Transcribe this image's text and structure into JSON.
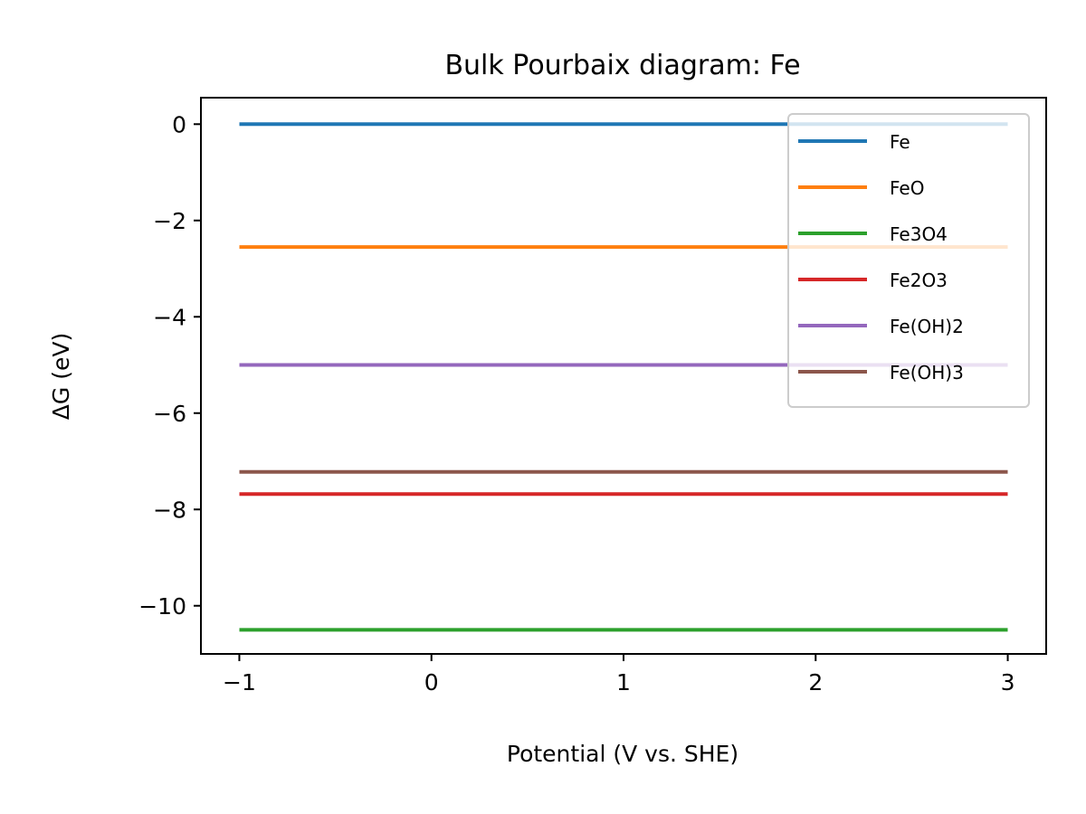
{
  "chart_data": {
    "type": "line",
    "title": "Bulk Pourbaix diagram: Fe",
    "xlabel": "Potential (V vs. SHE)",
    "ylabel": "ΔG (eV)",
    "xlim": [
      -1.2,
      3.2
    ],
    "ylim": [
      -11.0,
      0.55
    ],
    "xticks": [
      -1,
      0,
      1,
      2,
      3
    ],
    "xtick_labels": [
      "−1",
      "0",
      "1",
      "2",
      "3"
    ],
    "yticks": [
      0,
      -2,
      -4,
      -6,
      -8,
      -10
    ],
    "ytick_labels": [
      "0",
      "−2",
      "−4",
      "−6",
      "−8",
      "−10"
    ],
    "grid": false,
    "legend_position": "top-right",
    "x": [
      -1,
      3
    ],
    "series": [
      {
        "name": "Fe",
        "values": [
          0.0,
          0.0
        ],
        "color": "#1f77b4"
      },
      {
        "name": "FeO",
        "values": [
          -2.55,
          -2.55
        ],
        "color": "#ff7f0e"
      },
      {
        "name": "Fe3O4",
        "values": [
          -10.5,
          -10.5
        ],
        "color": "#2ca02c"
      },
      {
        "name": "Fe2O3",
        "values": [
          -7.68,
          -7.68
        ],
        "color": "#d62728"
      },
      {
        "name": "Fe(OH)2",
        "values": [
          -5.0,
          -5.0
        ],
        "color": "#9467bd"
      },
      {
        "name": "Fe(OH)3",
        "values": [
          -7.22,
          -7.22
        ],
        "color": "#8c564b"
      }
    ]
  }
}
